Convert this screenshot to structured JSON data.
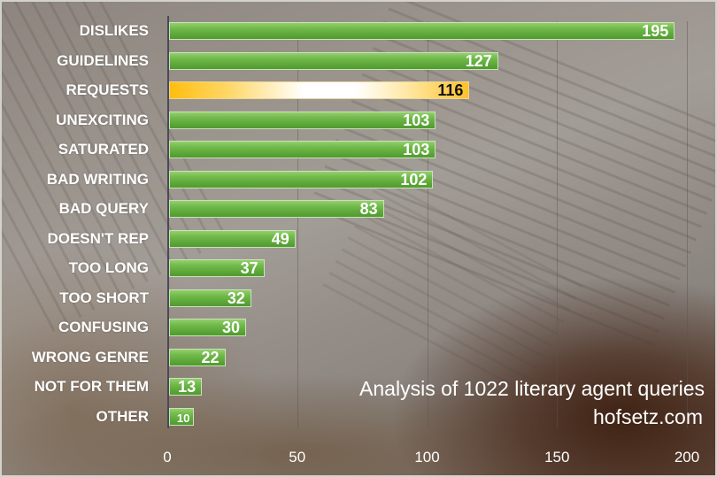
{
  "chart_data": {
    "type": "bar",
    "orientation": "horizontal",
    "title": "",
    "xlabel": "",
    "ylabel": "",
    "xlim": [
      0,
      200
    ],
    "grid": true,
    "x_ticks": [
      0,
      50,
      100,
      150,
      200
    ],
    "categories": [
      "DISLIKES",
      "GUIDELINES",
      "REQUESTS",
      "UNEXCITING",
      "SATURATED",
      "BAD WRITING",
      "BAD QUERY",
      "DOESN'T REP",
      "TOO LONG",
      "TOO SHORT",
      "CONFUSING",
      "WRONG GENRE",
      "NOT FOR THEM",
      "OTHER"
    ],
    "values": [
      195,
      127,
      116,
      103,
      103,
      102,
      83,
      49,
      37,
      32,
      30,
      22,
      13,
      10
    ],
    "highlighted": "REQUESTS",
    "annotations": [
      "Analysis of 1022 literary agent queries",
      "hofsetz.com"
    ],
    "colors": {
      "bar": "#6ab544",
      "highlight": "#ffbd10",
      "highlight_mid": "#ffffff"
    }
  },
  "annotation": {
    "line1": "Analysis of 1022 literary agent queries",
    "line2": "hofsetz.com"
  },
  "axis": {
    "ticks": [
      "0",
      "50",
      "100",
      "150",
      "200"
    ]
  }
}
